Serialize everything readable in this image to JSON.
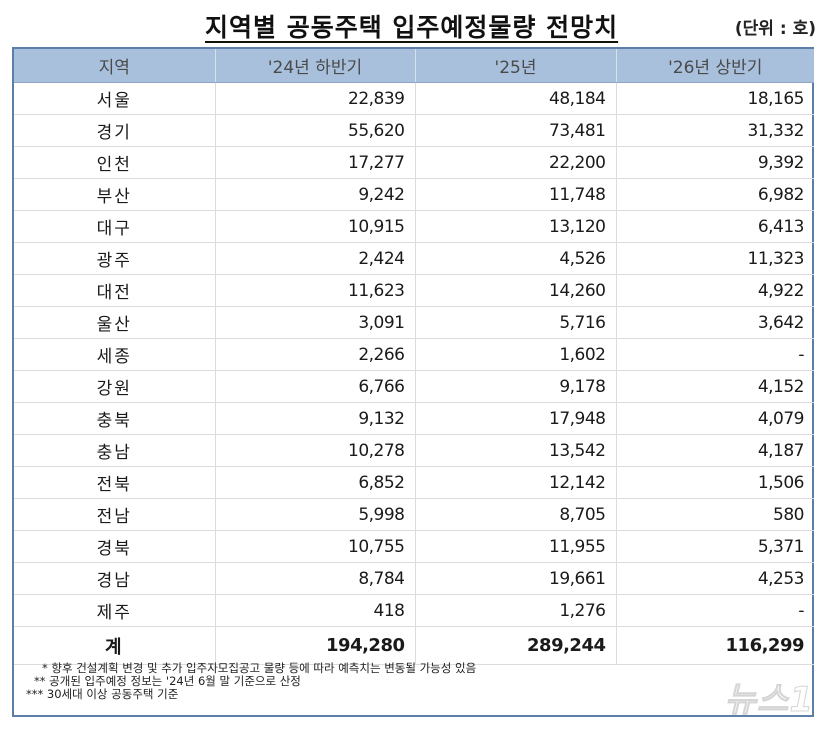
{
  "header": {
    "title": "지역별 공동주택 입주예정물량 전망치",
    "unit": "(단위 : 호)"
  },
  "table": {
    "columns": [
      "지역",
      "'24년 하반기",
      "'25년",
      "'26년 상반기"
    ],
    "rows": [
      {
        "region": "서울",
        "h2_2024": "22,839",
        "y2025": "48,184",
        "h1_2026": "18,165"
      },
      {
        "region": "경기",
        "h2_2024": "55,620",
        "y2025": "73,481",
        "h1_2026": "31,332"
      },
      {
        "region": "인천",
        "h2_2024": "17,277",
        "y2025": "22,200",
        "h1_2026": "9,392"
      },
      {
        "region": "부산",
        "h2_2024": "9,242",
        "y2025": "11,748",
        "h1_2026": "6,982"
      },
      {
        "region": "대구",
        "h2_2024": "10,915",
        "y2025": "13,120",
        "h1_2026": "6,413"
      },
      {
        "region": "광주",
        "h2_2024": "2,424",
        "y2025": "4,526",
        "h1_2026": "11,323"
      },
      {
        "region": "대전",
        "h2_2024": "11,623",
        "y2025": "14,260",
        "h1_2026": "4,922"
      },
      {
        "region": "울산",
        "h2_2024": "3,091",
        "y2025": "5,716",
        "h1_2026": "3,642"
      },
      {
        "region": "세종",
        "h2_2024": "2,266",
        "y2025": "1,602",
        "h1_2026": "-"
      },
      {
        "region": "강원",
        "h2_2024": "6,766",
        "y2025": "9,178",
        "h1_2026": "4,152"
      },
      {
        "region": "충북",
        "h2_2024": "9,132",
        "y2025": "17,948",
        "h1_2026": "4,079"
      },
      {
        "region": "충남",
        "h2_2024": "10,278",
        "y2025": "13,542",
        "h1_2026": "4,187"
      },
      {
        "region": "전북",
        "h2_2024": "6,852",
        "y2025": "12,142",
        "h1_2026": "1,506"
      },
      {
        "region": "전남",
        "h2_2024": "5,998",
        "y2025": "8,705",
        "h1_2026": "580"
      },
      {
        "region": "경북",
        "h2_2024": "10,755",
        "y2025": "11,955",
        "h1_2026": "5,371"
      },
      {
        "region": "경남",
        "h2_2024": "8,784",
        "y2025": "19,661",
        "h1_2026": "4,253"
      },
      {
        "region": "제주",
        "h2_2024": "418",
        "y2025": "1,276",
        "h1_2026": "-"
      }
    ],
    "total": {
      "region": "계",
      "h2_2024": "194,280",
      "y2025": "289,244",
      "h1_2026": "116,299"
    }
  },
  "notes": [
    "* 향후 건설계획 변경 및 추가 입주자모집공고 물량 등에 따라 예측치는 변동될 가능성 있음",
    "** 공개된 입주예정 정보는 '24년 6월 말 기준으로 산정",
    "*** 30세대 이상 공동주택 기준"
  ],
  "watermark": "뉴스1",
  "colors": {
    "header_bg": "#a9c0dc",
    "border": "#5b7fa8"
  }
}
